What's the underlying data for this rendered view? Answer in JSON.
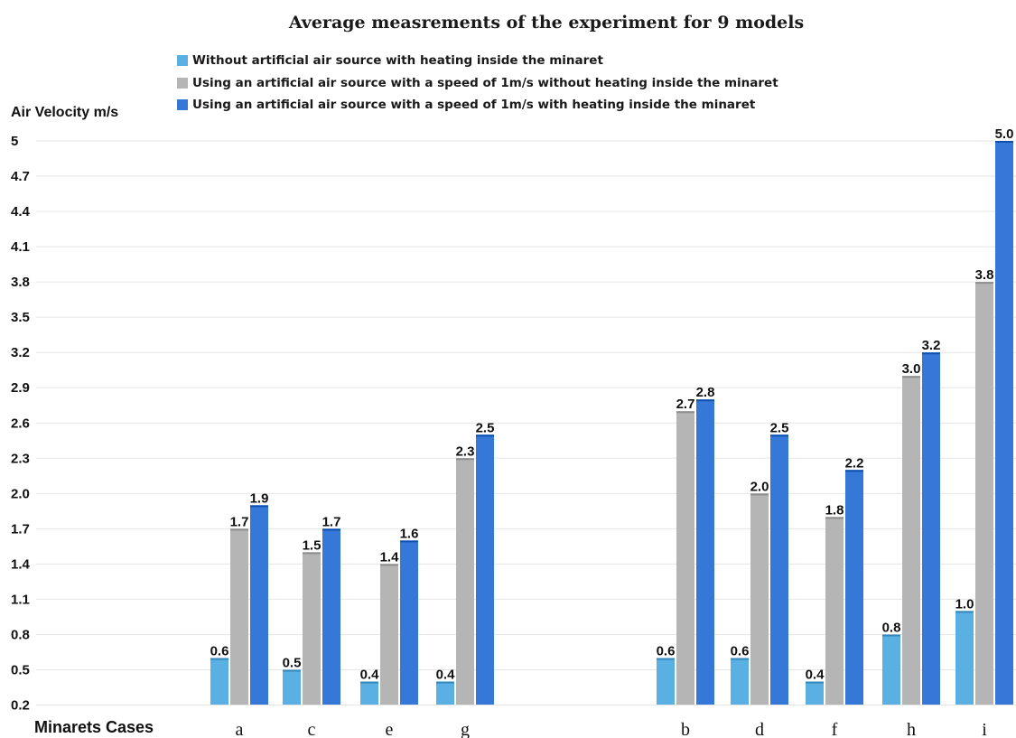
{
  "chart_data": {
    "type": "bar",
    "title": "Average measrements of the experiment for 9 models",
    "ylabel": "Air Velocity m/s",
    "xlabel": "Minarets Cases",
    "ylim": [
      0,
      5
    ],
    "yticks": [
      "0.2",
      "0.5",
      "0.8",
      "1.1",
      "1.4",
      "1.7",
      "2.0",
      "2.3",
      "2.6",
      "2.9",
      "3.2",
      "3.5",
      "3.8",
      "4.1",
      "4.4",
      "4.7",
      "5"
    ],
    "grid": true,
    "legend_position": "top",
    "categories": [
      "a",
      "c",
      "e",
      "g",
      "b",
      "d",
      "f",
      "h",
      "i"
    ],
    "series": [
      {
        "name": "Without artificial air source with heating inside the minaret",
        "color": "#5aafe3",
        "values": [
          0.6,
          0.5,
          0.4,
          0.4,
          0.6,
          0.6,
          0.4,
          0.8,
          1.0
        ],
        "labels": [
          "0.6",
          "0.5",
          "0.4",
          "0.4",
          "0.6",
          "0.6",
          "0.4",
          "0.8",
          "1.0"
        ]
      },
      {
        "name": "Using an artificial air source with a speed of 1m/s without heating inside the minaret",
        "color": "#b5b5b5",
        "values": [
          1.7,
          1.5,
          1.4,
          2.3,
          2.7,
          2.0,
          1.8,
          3.0,
          3.8
        ],
        "labels": [
          "1.7",
          "1.5",
          "1.4",
          "2.3",
          "2.7",
          "2.0",
          "1.8",
          "3.0",
          "3.8"
        ]
      },
      {
        "name": "Using an artificial air source with a speed of 1m/s with heating inside the minaret",
        "color": "#3578d8",
        "values": [
          1.9,
          1.7,
          1.6,
          2.5,
          2.8,
          2.5,
          2.2,
          3.2,
          5.0
        ],
        "labels": [
          "1.9",
          "1.7",
          "1.6",
          "2.5",
          "2.8",
          "2.5",
          "2.2",
          "3.2",
          "5.0"
        ]
      }
    ]
  }
}
